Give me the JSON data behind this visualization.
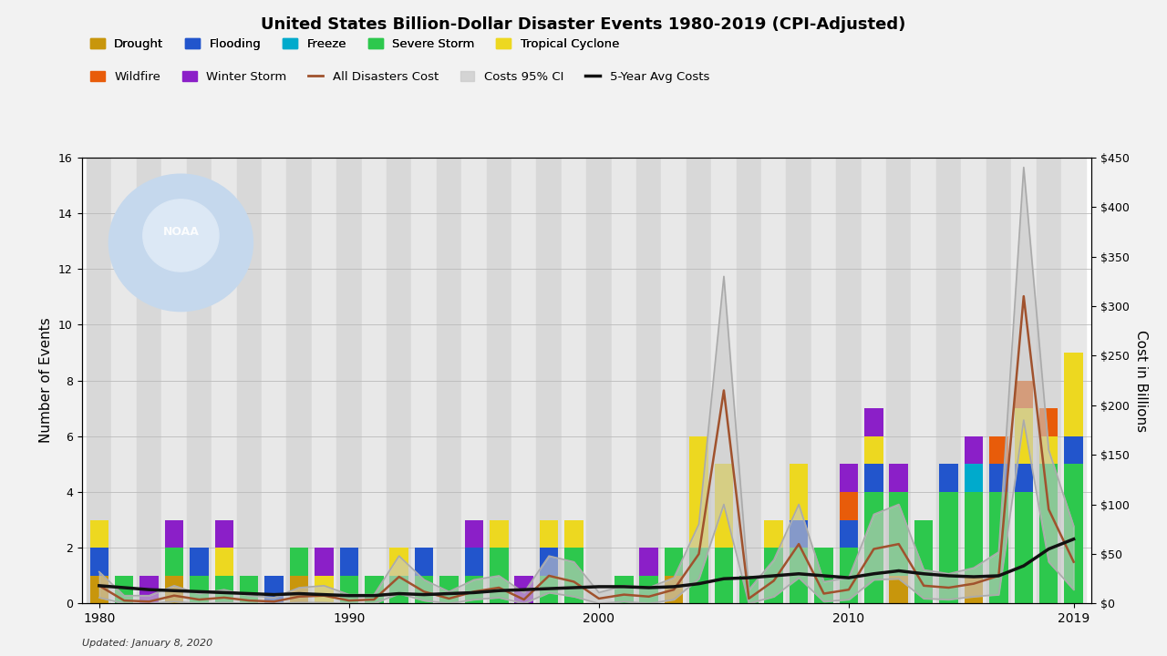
{
  "title": "United States Billion-Dollar Disaster Events 1980-2019 (CPI-Adjusted)",
  "updated_text": "Updated: January 8, 2020",
  "ylabel_left": "Number of Events",
  "ylabel_right": "Cost in Billions",
  "years": [
    1980,
    1981,
    1982,
    1983,
    1984,
    1985,
    1986,
    1987,
    1988,
    1989,
    1990,
    1991,
    1992,
    1993,
    1994,
    1995,
    1996,
    1997,
    1998,
    1999,
    2000,
    2001,
    2002,
    2003,
    2004,
    2005,
    2006,
    2007,
    2008,
    2009,
    2010,
    2011,
    2012,
    2013,
    2014,
    2015,
    2016,
    2017,
    2018,
    2019
  ],
  "drought": [
    1,
    0,
    0,
    1,
    0,
    0,
    0,
    0,
    1,
    0,
    0,
    0,
    0,
    0,
    0,
    0,
    0,
    0,
    0,
    0,
    0,
    0,
    0,
    1,
    0,
    0,
    0,
    0,
    0,
    0,
    0,
    0,
    1,
    0,
    0,
    1,
    0,
    0,
    0,
    0
  ],
  "severe_storm": [
    0,
    1,
    0,
    1,
    1,
    1,
    1,
    0,
    1,
    0,
    1,
    1,
    1,
    1,
    1,
    1,
    2,
    0,
    1,
    2,
    0,
    1,
    1,
    1,
    2,
    2,
    1,
    2,
    2,
    2,
    2,
    4,
    3,
    3,
    4,
    3,
    4,
    4,
    5,
    5
  ],
  "flooding": [
    1,
    0,
    0,
    0,
    1,
    0,
    0,
    1,
    0,
    0,
    1,
    0,
    0,
    1,
    0,
    1,
    0,
    0,
    1,
    0,
    0,
    0,
    0,
    0,
    0,
    0,
    0,
    0,
    1,
    0,
    1,
    1,
    0,
    0,
    1,
    0,
    1,
    1,
    0,
    1
  ],
  "freeze": [
    0,
    0,
    0,
    0,
    0,
    0,
    0,
    0,
    0,
    0,
    0,
    0,
    0,
    0,
    0,
    0,
    0,
    0,
    0,
    0,
    0,
    0,
    0,
    0,
    0,
    0,
    0,
    0,
    0,
    0,
    0,
    0,
    0,
    0,
    0,
    1,
    0,
    0,
    0,
    0
  ],
  "tropical_cyclone": [
    1,
    0,
    0,
    0,
    0,
    1,
    0,
    0,
    0,
    1,
    0,
    0,
    1,
    0,
    0,
    0,
    1,
    0,
    1,
    1,
    0,
    0,
    0,
    0,
    4,
    3,
    0,
    1,
    2,
    0,
    0,
    1,
    0,
    0,
    0,
    0,
    0,
    2,
    1,
    3
  ],
  "wildfire": [
    0,
    0,
    0,
    0,
    0,
    0,
    0,
    0,
    0,
    0,
    0,
    0,
    0,
    0,
    0,
    0,
    0,
    0,
    0,
    0,
    0,
    0,
    0,
    0,
    0,
    0,
    0,
    0,
    0,
    0,
    1,
    0,
    0,
    0,
    0,
    0,
    1,
    1,
    1,
    0
  ],
  "winter_storm": [
    0,
    0,
    1,
    1,
    0,
    1,
    0,
    0,
    0,
    1,
    0,
    0,
    0,
    0,
    0,
    1,
    0,
    1,
    0,
    0,
    0,
    0,
    1,
    0,
    0,
    0,
    0,
    0,
    0,
    0,
    1,
    1,
    1,
    0,
    0,
    1,
    0,
    0,
    0,
    0
  ],
  "colors": {
    "drought": "#C8960C",
    "severe_storm": "#2DC84D",
    "flooding": "#2255CC",
    "freeze": "#00AACC",
    "tropical_cyclone": "#EDD820",
    "wildfire": "#E85C0A",
    "winter_storm": "#8B1FC8",
    "all_disasters_cost": "#A0522D",
    "costs_95ci_fill": "#c8c8c8",
    "costs_95ci_line": "#aaaaaa",
    "avg5year": "#111111"
  },
  "all_disasters_cost": [
    18,
    3,
    2,
    8,
    4,
    6,
    3,
    2,
    7,
    8,
    3,
    4,
    27,
    12,
    5,
    12,
    16,
    4,
    28,
    22,
    5,
    9,
    7,
    14,
    50,
    215,
    5,
    23,
    60,
    10,
    14,
    55,
    60,
    18,
    16,
    20,
    28,
    310,
    95,
    42
  ],
  "costs_95ci_upper": [
    32,
    8,
    8,
    18,
    10,
    14,
    8,
    6,
    16,
    18,
    9,
    9,
    48,
    24,
    12,
    24,
    28,
    11,
    48,
    42,
    11,
    18,
    16,
    26,
    80,
    330,
    14,
    44,
    100,
    22,
    26,
    90,
    100,
    34,
    30,
    36,
    52,
    440,
    155,
    78
  ],
  "costs_95ci_lower": [
    6,
    0,
    0,
    2,
    0,
    1,
    0,
    0,
    1,
    1,
    0,
    0,
    10,
    3,
    0,
    4,
    6,
    0,
    11,
    7,
    0,
    2,
    0,
    4,
    25,
    100,
    0,
    7,
    26,
    2,
    4,
    24,
    25,
    5,
    4,
    7,
    9,
    185,
    42,
    14
  ],
  "avg5year_cost": [
    18,
    16,
    14,
    13,
    12,
    11,
    10,
    9,
    10,
    9,
    8,
    8,
    10,
    9,
    10,
    11,
    13,
    14,
    15,
    16,
    17,
    17,
    16,
    17,
    20,
    25,
    26,
    28,
    30,
    28,
    26,
    30,
    33,
    30,
    28,
    27,
    28,
    38,
    55,
    65
  ],
  "ylim_left": [
    0,
    16
  ],
  "ylim_right": [
    0,
    450
  ],
  "yticks_left": [
    0,
    2,
    4,
    6,
    8,
    10,
    12,
    14,
    16
  ],
  "yticks_right": [
    0,
    50,
    100,
    150,
    200,
    250,
    300,
    350,
    400,
    450
  ],
  "ytick_labels_right": [
    "$0",
    "$50",
    "$100",
    "$150",
    "$200",
    "$250",
    "$300",
    "$350",
    "$400",
    "$450"
  ],
  "xtick_positions": [
    1980,
    1990,
    2000,
    2010,
    2019
  ],
  "bg_color": "#f2f2f2",
  "stripe_light": "#e8e8e8",
  "stripe_dark": "#d8d8d8"
}
